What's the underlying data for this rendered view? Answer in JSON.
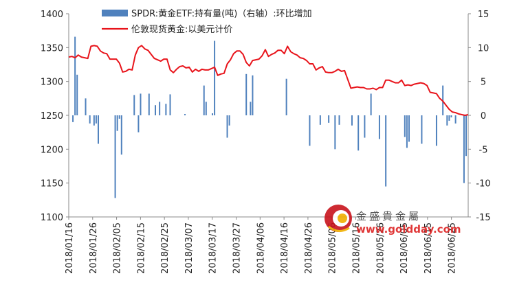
{
  "chart_data": {
    "type": "bar+line",
    "legend": {
      "placement": "top",
      "bar_label": "SPDR:黄金ETF:持有量(吨)（右轴）:环比增加",
      "line_label": "伦敦现货黄金:以美元计价"
    },
    "colors": {
      "bar": "#4f81bd",
      "line": "#e8141b"
    },
    "left_axis": {
      "min": 1100,
      "max": 1400,
      "ticks": [
        "1100",
        "1150",
        "1200",
        "1250",
        "1300",
        "1350",
        "1400"
      ]
    },
    "right_axis": {
      "min": -15,
      "max": 15,
      "ticks": [
        "-15",
        "-10",
        "-5",
        "0",
        "5",
        "10",
        "15"
      ]
    },
    "x_tick_labels": [
      "2018/01/16",
      "2018/01/26",
      "2018/02/05",
      "2018/02/15",
      "2018/02/25",
      "2018/03/07",
      "2018/03/17",
      "2018/03/27",
      "2018/04/06",
      "2018/04/16",
      "2018/04/26",
      "2018/05/06",
      "2018/05/16",
      "2018/05/26",
      "2018/06/05",
      "2018/06/15",
      "2018/06/25"
    ],
    "x_range": {
      "start": "2018/01/16",
      "end": "2018/07/02"
    },
    "line_series": [
      1336,
      1337,
      1335,
      1339,
      1336,
      1335,
      1334,
      1352,
      1353,
      1352,
      1345,
      1342,
      1341,
      1333,
      1333,
      1333,
      1327,
      1314,
      1315,
      1318,
      1317,
      1339,
      1350,
      1353,
      1348,
      1346,
      1340,
      1334,
      1332,
      1330,
      1333,
      1333,
      1317,
      1313,
      1318,
      1322,
      1323,
      1320,
      1321,
      1314,
      1318,
      1315,
      1318,
      1317,
      1317,
      1319,
      1321,
      1309,
      1311,
      1312,
      1326,
      1332,
      1341,
      1345,
      1345,
      1340,
      1328,
      1323,
      1331,
      1332,
      1333,
      1338,
      1347,
      1337,
      1340,
      1342,
      1346,
      1346,
      1341,
      1352,
      1344,
      1341,
      1339,
      1335,
      1334,
      1331,
      1326,
      1326,
      1317,
      1320,
      1322,
      1314,
      1313,
      1313,
      1315,
      1318,
      1315,
      1316,
      1303,
      1290,
      1291,
      1292,
      1291,
      1291,
      1289,
      1289,
      1290,
      1288,
      1291,
      1291,
      1302,
      1302,
      1300,
      1298,
      1298,
      1302,
      1294,
      1295,
      1294,
      1296,
      1297,
      1298,
      1297,
      1294,
      1284,
      1283,
      1282,
      1275,
      1271,
      1265,
      1259,
      1255,
      1254,
      1252,
      1251,
      1250,
      1251
    ],
    "bar_series": [
      0,
      -1,
      11.6,
      6,
      0,
      0,
      0,
      2.5,
      0,
      -1.2,
      0,
      -1.5,
      -1.2,
      -4.2,
      0,
      0,
      0,
      0,
      0,
      0,
      0,
      -12.2,
      -2.3,
      -0.5,
      -5.8,
      0,
      0,
      0,
      0,
      0,
      3,
      0,
      -2.5,
      3.2,
      0,
      0,
      0,
      3.2,
      0,
      0,
      1.5,
      0,
      2,
      0,
      0,
      1.7,
      0,
      3.1,
      0,
      0,
      0,
      0,
      0,
      0,
      0.2,
      0,
      0,
      0,
      0,
      0,
      0,
      0,
      0,
      4.4,
      2,
      0,
      0,
      0.3,
      11,
      0,
      0,
      0,
      0,
      0,
      -3.3,
      -1.5,
      0,
      0,
      0,
      0,
      0,
      0,
      0,
      6.1,
      0,
      2,
      5.9,
      0,
      0,
      0,
      0,
      0,
      0,
      0,
      0,
      0,
      0,
      0,
      0,
      0,
      0,
      0,
      5.4,
      0,
      0,
      0,
      0,
      0,
      0,
      0,
      0,
      0,
      0,
      -4.5,
      0,
      0,
      0,
      0,
      -1.4,
      0,
      0,
      0,
      -1.1,
      0,
      0,
      -5,
      0,
      -1.4,
      0,
      0,
      0,
      0,
      0,
      -1.5,
      0,
      0,
      -5.2,
      0,
      0,
      -3.3,
      0,
      0,
      3.2,
      0,
      0,
      0,
      -3.5,
      0,
      0,
      -10.5,
      0,
      0,
      0,
      0,
      0,
      0,
      0,
      0,
      -3.2,
      -4.8,
      -3.9,
      0,
      0,
      0,
      0,
      0,
      -4.2,
      0,
      0,
      0,
      0,
      0,
      0,
      -4.5,
      0,
      0,
      4.4,
      0,
      -1.5,
      -0.8,
      -0.3,
      0,
      -1.2,
      0,
      0,
      0,
      -10,
      -6
    ]
  },
  "watermark": {
    "name": "金盛貴金屬",
    "url": "www.goldday.com"
  }
}
